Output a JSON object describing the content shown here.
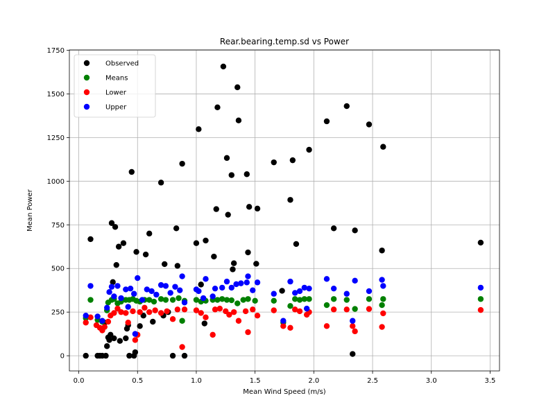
{
  "chart_data": {
    "type": "scatter",
    "title": "Rear.bearing.temp.sd vs Power",
    "xlabel": "Mean Wind Speed (m/s)",
    "ylabel": "Mean Power",
    "xlim": [
      -0.08,
      3.58
    ],
    "ylim": [
      -87,
      1752
    ],
    "xticks": [
      0.0,
      0.5,
      1.0,
      1.5,
      2.0,
      2.5,
      3.0,
      3.5
    ],
    "xtick_labels": [
      "0.0",
      "0.5",
      "1.0",
      "1.5",
      "2.0",
      "2.5",
      "3.0",
      "3.5"
    ],
    "yticks": [
      0,
      250,
      500,
      750,
      1000,
      1250,
      1500,
      1750
    ],
    "ytick_labels": [
      "0",
      "250",
      "500",
      "750",
      "1000",
      "1250",
      "1500",
      "1750"
    ],
    "grid": true,
    "legend_position": "upper-left",
    "series": [
      {
        "name": "Observed",
        "color": "#000000",
        "points": [
          [
            0.06,
            0
          ],
          [
            0.1,
            668
          ],
          [
            0.16,
            0
          ],
          [
            0.18,
            0
          ],
          [
            0.2,
            0
          ],
          [
            0.22,
            190
          ],
          [
            0.23,
            0
          ],
          [
            0.24,
            55
          ],
          [
            0.25,
            105
          ],
          [
            0.26,
            90
          ],
          [
            0.27,
            120
          ],
          [
            0.28,
            760
          ],
          [
            0.29,
            422
          ],
          [
            0.3,
            100
          ],
          [
            0.31,
            738
          ],
          [
            0.32,
            520
          ],
          [
            0.34,
            625
          ],
          [
            0.35,
            85
          ],
          [
            0.38,
            645
          ],
          [
            0.4,
            100
          ],
          [
            0.41,
            155
          ],
          [
            0.42,
            175
          ],
          [
            0.43,
            0
          ],
          [
            0.45,
            1053
          ],
          [
            0.47,
            0
          ],
          [
            0.48,
            20
          ],
          [
            0.49,
            595
          ],
          [
            0.52,
            170
          ],
          [
            0.55,
            230
          ],
          [
            0.57,
            580
          ],
          [
            0.6,
            700
          ],
          [
            0.63,
            195
          ],
          [
            0.7,
            992
          ],
          [
            0.72,
            230
          ],
          [
            0.73,
            525
          ],
          [
            0.76,
            250
          ],
          [
            0.8,
            0
          ],
          [
            0.83,
            730
          ],
          [
            0.84,
            515
          ],
          [
            0.88,
            1100
          ],
          [
            0.9,
            0
          ],
          [
            1.0,
            645
          ],
          [
            1.02,
            1298
          ],
          [
            1.04,
            408
          ],
          [
            1.07,
            185
          ],
          [
            1.08,
            660
          ],
          [
            1.15,
            568
          ],
          [
            1.17,
            840
          ],
          [
            1.18,
            1423
          ],
          [
            1.23,
            1657
          ],
          [
            1.26,
            1133
          ],
          [
            1.27,
            808
          ],
          [
            1.3,
            1035
          ],
          [
            1.31,
            495
          ],
          [
            1.32,
            530
          ],
          [
            1.35,
            1538
          ],
          [
            1.36,
            1348
          ],
          [
            1.43,
            1040
          ],
          [
            1.44,
            592
          ],
          [
            1.45,
            853
          ],
          [
            1.51,
            527
          ],
          [
            1.52,
            843
          ],
          [
            1.66,
            1108
          ],
          [
            1.73,
            372
          ],
          [
            1.8,
            893
          ],
          [
            1.82,
            1120
          ],
          [
            1.85,
            640
          ],
          [
            1.96,
            1180
          ],
          [
            2.11,
            1343
          ],
          [
            2.17,
            730
          ],
          [
            2.28,
            1430
          ],
          [
            2.33,
            10
          ],
          [
            2.35,
            718
          ],
          [
            2.47,
            1325
          ],
          [
            2.58,
            603
          ],
          [
            2.59,
            1197
          ],
          [
            3.42,
            648
          ]
        ]
      },
      {
        "name": "Means",
        "color": "#008000",
        "points": [
          [
            0.06,
            215
          ],
          [
            0.1,
            320
          ],
          [
            0.16,
            205
          ],
          [
            0.2,
            195
          ],
          [
            0.24,
            260
          ],
          [
            0.25,
            305
          ],
          [
            0.28,
            320
          ],
          [
            0.3,
            325
          ],
          [
            0.33,
            300
          ],
          [
            0.36,
            310
          ],
          [
            0.4,
            320
          ],
          [
            0.43,
            320
          ],
          [
            0.46,
            325
          ],
          [
            0.49,
            315
          ],
          [
            0.52,
            310
          ],
          [
            0.56,
            320
          ],
          [
            0.6,
            320
          ],
          [
            0.64,
            310
          ],
          [
            0.7,
            325
          ],
          [
            0.74,
            320
          ],
          [
            0.8,
            320
          ],
          [
            0.85,
            330
          ],
          [
            0.88,
            200
          ],
          [
            0.9,
            315
          ],
          [
            1.0,
            320
          ],
          [
            1.04,
            310
          ],
          [
            1.08,
            315
          ],
          [
            1.14,
            320
          ],
          [
            1.18,
            320
          ],
          [
            1.22,
            325
          ],
          [
            1.26,
            320
          ],
          [
            1.3,
            318
          ],
          [
            1.35,
            300
          ],
          [
            1.4,
            320
          ],
          [
            1.44,
            325
          ],
          [
            1.5,
            315
          ],
          [
            1.66,
            315
          ],
          [
            1.74,
            190
          ],
          [
            1.8,
            285
          ],
          [
            1.84,
            325
          ],
          [
            1.88,
            320
          ],
          [
            1.92,
            325
          ],
          [
            1.96,
            325
          ],
          [
            2.11,
            290
          ],
          [
            2.17,
            325
          ],
          [
            2.28,
            320
          ],
          [
            2.35,
            268
          ],
          [
            2.47,
            325
          ],
          [
            2.58,
            290
          ],
          [
            2.59,
            325
          ],
          [
            3.42,
            325
          ]
        ]
      },
      {
        "name": "Lower",
        "color": "#ff0000",
        "points": [
          [
            0.06,
            190
          ],
          [
            0.1,
            220
          ],
          [
            0.15,
            175
          ],
          [
            0.18,
            160
          ],
          [
            0.2,
            145
          ],
          [
            0.22,
            165
          ],
          [
            0.25,
            195
          ],
          [
            0.27,
            230
          ],
          [
            0.3,
            245
          ],
          [
            0.33,
            270
          ],
          [
            0.36,
            250
          ],
          [
            0.4,
            245
          ],
          [
            0.42,
            190
          ],
          [
            0.46,
            255
          ],
          [
            0.48,
            90
          ],
          [
            0.5,
            120
          ],
          [
            0.52,
            250
          ],
          [
            0.56,
            275
          ],
          [
            0.6,
            250
          ],
          [
            0.65,
            260
          ],
          [
            0.7,
            245
          ],
          [
            0.75,
            255
          ],
          [
            0.8,
            210
          ],
          [
            0.84,
            265
          ],
          [
            0.88,
            50
          ],
          [
            0.9,
            265
          ],
          [
            1.0,
            260
          ],
          [
            1.04,
            245
          ],
          [
            1.08,
            220
          ],
          [
            1.14,
            120
          ],
          [
            1.16,
            265
          ],
          [
            1.2,
            270
          ],
          [
            1.25,
            255
          ],
          [
            1.28,
            235
          ],
          [
            1.32,
            250
          ],
          [
            1.36,
            200
          ],
          [
            1.42,
            255
          ],
          [
            1.44,
            135
          ],
          [
            1.48,
            265
          ],
          [
            1.52,
            230
          ],
          [
            1.66,
            260
          ],
          [
            1.74,
            170
          ],
          [
            1.8,
            160
          ],
          [
            1.84,
            265
          ],
          [
            1.88,
            255
          ],
          [
            1.94,
            235
          ],
          [
            1.96,
            250
          ],
          [
            2.11,
            170
          ],
          [
            2.17,
            265
          ],
          [
            2.28,
            265
          ],
          [
            2.33,
            170
          ],
          [
            2.35,
            140
          ],
          [
            2.47,
            268
          ],
          [
            2.58,
            165
          ],
          [
            2.59,
            243
          ],
          [
            3.42,
            262
          ]
        ]
      },
      {
        "name": "Upper",
        "color": "#0000ff",
        "points": [
          [
            0.06,
            230
          ],
          [
            0.1,
            400
          ],
          [
            0.16,
            225
          ],
          [
            0.2,
            200
          ],
          [
            0.24,
            275
          ],
          [
            0.26,
            365
          ],
          [
            0.28,
            395
          ],
          [
            0.3,
            340
          ],
          [
            0.33,
            400
          ],
          [
            0.36,
            330
          ],
          [
            0.4,
            380
          ],
          [
            0.42,
            280
          ],
          [
            0.44,
            385
          ],
          [
            0.47,
            355
          ],
          [
            0.48,
            125
          ],
          [
            0.5,
            445
          ],
          [
            0.54,
            320
          ],
          [
            0.58,
            380
          ],
          [
            0.62,
            370
          ],
          [
            0.66,
            350
          ],
          [
            0.7,
            405
          ],
          [
            0.74,
            400
          ],
          [
            0.78,
            360
          ],
          [
            0.82,
            395
          ],
          [
            0.86,
            375
          ],
          [
            0.88,
            455
          ],
          [
            0.9,
            305
          ],
          [
            1.0,
            380
          ],
          [
            1.02,
            370
          ],
          [
            1.06,
            330
          ],
          [
            1.08,
            440
          ],
          [
            1.14,
            340
          ],
          [
            1.16,
            385
          ],
          [
            1.22,
            390
          ],
          [
            1.26,
            425
          ],
          [
            1.3,
            390
          ],
          [
            1.34,
            410
          ],
          [
            1.38,
            415
          ],
          [
            1.43,
            420
          ],
          [
            1.44,
            455
          ],
          [
            1.48,
            375
          ],
          [
            1.52,
            420
          ],
          [
            1.66,
            355
          ],
          [
            1.74,
            200
          ],
          [
            1.8,
            425
          ],
          [
            1.84,
            360
          ],
          [
            1.88,
            370
          ],
          [
            1.92,
            390
          ],
          [
            1.94,
            270
          ],
          [
            1.96,
            385
          ],
          [
            2.11,
            440
          ],
          [
            2.17,
            385
          ],
          [
            2.28,
            355
          ],
          [
            2.33,
            200
          ],
          [
            2.35,
            430
          ],
          [
            2.47,
            370
          ],
          [
            2.58,
            435
          ],
          [
            2.59,
            400
          ],
          [
            3.42,
            390
          ]
        ]
      }
    ]
  }
}
